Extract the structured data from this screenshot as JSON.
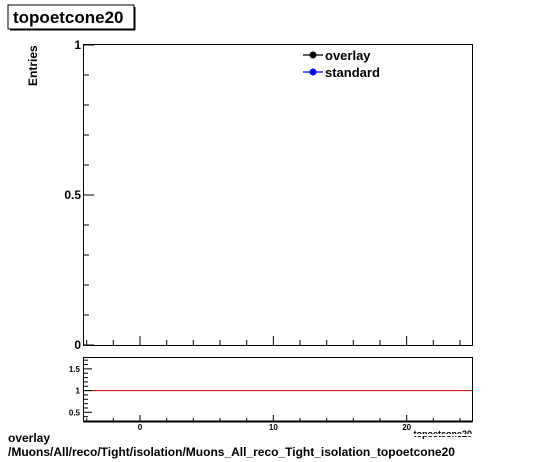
{
  "title": "topoetcone20",
  "chart_data": [
    {
      "type": "line",
      "ylabel": "Entries",
      "xlabel": "topoetcone20",
      "xlim": [
        -4.2,
        24.9
      ],
      "ylim": [
        0,
        1
      ],
      "y_ticks": [
        {
          "value": 0,
          "label": "0"
        },
        {
          "value": 0.5,
          "label": "0.5"
        },
        {
          "value": 1,
          "label": "1"
        }
      ],
      "legend_position": "top-right",
      "series": [
        {
          "name": "overlay",
          "color": "#000000",
          "x": [],
          "y": []
        },
        {
          "name": "standard",
          "color": "#0000ff",
          "x": [],
          "y": []
        }
      ]
    },
    {
      "type": "line",
      "xlim": [
        -4.2,
        24.9
      ],
      "ylim": [
        0.3,
        1.75
      ],
      "x_ticks": [
        {
          "value": 0,
          "label": "0"
        },
        {
          "value": 10,
          "label": "10"
        },
        {
          "value": 20,
          "label": "20"
        }
      ],
      "y_ticks": [
        {
          "value": 0.5,
          "label": "0.5"
        },
        {
          "value": 1,
          "label": "1"
        },
        {
          "value": 1.5,
          "label": "1.5"
        }
      ],
      "reference_line": {
        "value": 1,
        "color": "#cc0000"
      }
    }
  ],
  "footer": {
    "line1": "overlay",
    "line2": "/Muons/All/reco/Tight/isolation/Muons_All_reco_Tight_isolation_topoetcone20"
  }
}
